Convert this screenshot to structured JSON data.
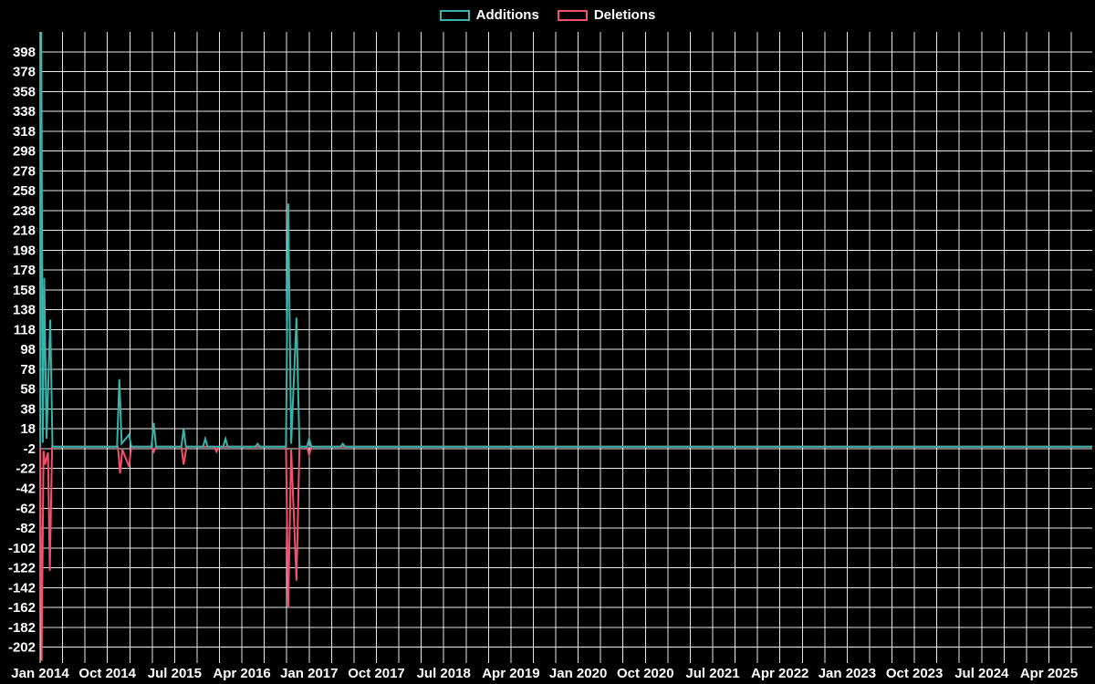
{
  "legend": {
    "additions_label": "Additions",
    "deletions_label": "Deletions"
  },
  "colors": {
    "background": "#000000",
    "grid": "#ffffff",
    "text": "#ffffff",
    "additions": "#36b3ab",
    "deletions": "#f4506e"
  },
  "chart_data": {
    "type": "line",
    "title": "",
    "xlabel": "",
    "ylabel": "",
    "legend_position": "top-center",
    "grid": true,
    "x_unit": "months since Jan 2014",
    "x_grid_step_months": 3,
    "xlim_months": [
      0,
      140.8
    ],
    "ylim": [
      -218,
      418
    ],
    "y_ticks": [
      398,
      378,
      358,
      338,
      318,
      298,
      278,
      258,
      238,
      218,
      198,
      178,
      158,
      138,
      118,
      98,
      78,
      58,
      38,
      18,
      -2,
      -22,
      -42,
      -62,
      -82,
      -102,
      -122,
      -142,
      -162,
      -182,
      -202
    ],
    "x_tick_labels": [
      {
        "label": "Jan 2014",
        "month": 0
      },
      {
        "label": "Oct 2014",
        "month": 9
      },
      {
        "label": "Jul 2015",
        "month": 18
      },
      {
        "label": "Apr 2016",
        "month": 27
      },
      {
        "label": "Jan 2017",
        "month": 36
      },
      {
        "label": "Oct 2017",
        "month": 45
      },
      {
        "label": "Jul 2018",
        "month": 54
      },
      {
        "label": "Apr 2019",
        "month": 63
      },
      {
        "label": "Jan 2020",
        "month": 72
      },
      {
        "label": "Oct 2020",
        "month": 81
      },
      {
        "label": "Jul 2021",
        "month": 90
      },
      {
        "label": "Apr 2022",
        "month": 99
      },
      {
        "label": "Jan 2023",
        "month": 108
      },
      {
        "label": "Oct 2023",
        "month": 117
      },
      {
        "label": "Jul 2024",
        "month": 126
      },
      {
        "label": "Apr 2025",
        "month": 135
      }
    ],
    "series": [
      {
        "name": "Deletions",
        "color_key": "deletions",
        "points": [
          [
            -0.5,
            0
          ],
          [
            0,
            0
          ],
          [
            0.2,
            -216
          ],
          [
            0.45,
            -4
          ],
          [
            0.65,
            -18
          ],
          [
            1.05,
            -6
          ],
          [
            1.3,
            -125
          ],
          [
            1.6,
            0
          ],
          [
            10.4,
            0
          ],
          [
            10.7,
            -27
          ],
          [
            11.0,
            -3
          ],
          [
            11.9,
            -20
          ],
          [
            12.2,
            0
          ],
          [
            14.9,
            0
          ],
          [
            15.2,
            -5
          ],
          [
            15.5,
            0
          ],
          [
            18.9,
            0
          ],
          [
            19.2,
            -18
          ],
          [
            19.6,
            0
          ],
          [
            23.3,
            0
          ],
          [
            23.6,
            -5
          ],
          [
            23.9,
            0
          ],
          [
            32.9,
            0
          ],
          [
            33.2,
            -162
          ],
          [
            33.6,
            -3
          ],
          [
            34.3,
            -135
          ],
          [
            34.7,
            0
          ],
          [
            35.7,
            0
          ],
          [
            36.0,
            -8
          ],
          [
            36.3,
            0
          ],
          [
            140.8,
            0
          ]
        ]
      },
      {
        "name": "Additions",
        "color_key": "additions",
        "points": [
          [
            -0.5,
            0
          ],
          [
            0,
            0
          ],
          [
            0.15,
            432
          ],
          [
            0.35,
            4
          ],
          [
            0.55,
            170
          ],
          [
            0.85,
            8
          ],
          [
            1.35,
            128
          ],
          [
            1.65,
            0
          ],
          [
            10.3,
            0
          ],
          [
            10.6,
            68
          ],
          [
            10.9,
            3
          ],
          [
            11.9,
            12
          ],
          [
            12.2,
            0
          ],
          [
            14.9,
            0
          ],
          [
            15.2,
            24
          ],
          [
            15.5,
            0
          ],
          [
            18.9,
            0
          ],
          [
            19.2,
            18
          ],
          [
            19.5,
            0
          ],
          [
            21.8,
            0
          ],
          [
            22.1,
            8
          ],
          [
            22.4,
            0
          ],
          [
            24.5,
            0
          ],
          [
            24.8,
            8
          ],
          [
            25.1,
            0
          ],
          [
            28.8,
            0
          ],
          [
            29.1,
            3
          ],
          [
            29.4,
            0
          ],
          [
            32.9,
            0
          ],
          [
            33.2,
            245
          ],
          [
            33.6,
            3
          ],
          [
            34.3,
            130
          ],
          [
            34.7,
            0
          ],
          [
            35.7,
            0
          ],
          [
            36.0,
            8
          ],
          [
            36.3,
            0
          ],
          [
            40.2,
            0
          ],
          [
            40.5,
            3
          ],
          [
            40.8,
            0
          ],
          [
            140.8,
            0
          ]
        ]
      }
    ]
  }
}
